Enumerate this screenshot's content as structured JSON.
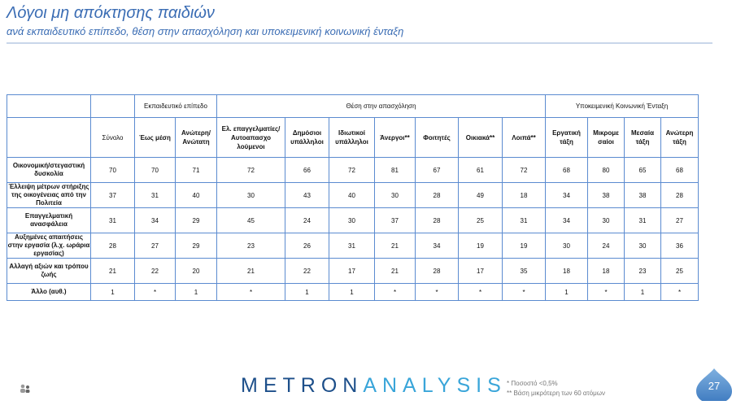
{
  "header": {
    "title": "Λόγοι μη απόκτησης παιδιών",
    "subtitle": "ανά εκπαιδευτικό επίπεδο, θέση στην απασχόληση και υποκειμενική κοινωνική ένταξη"
  },
  "table": {
    "groups": {
      "education": "Εκπαιδευτικό επίπεδο",
      "employment": "Θέση στην απασχόληση",
      "class": "Υποκειμενική Κοινωνική Ένταξη"
    },
    "columns": [
      "Σύνολο",
      "Έως μέση",
      "Ανώτερη/ Ανώτατη",
      "Ελ. επαγγελματίες/ Αυτοαπασχο λούμενοι",
      "Δημόσιοι υπάλληλοι",
      "Ιδιωτικοί υπάλληλοι",
      "Άνεργοι**",
      "Φοιτητές",
      "Οικιακά**",
      "Λοιπά**",
      "Εργατική τάξη",
      "Μικρομε σαίοι",
      "Μεσαία τάξη",
      "Ανώτερη τάξη"
    ],
    "rows": [
      {
        "label": "Οικονομική/στεγαστική δυσκολία",
        "values": [
          "70",
          "70",
          "71",
          "72",
          "66",
          "72",
          "81",
          "67",
          "61",
          "72",
          "68",
          "80",
          "65",
          "68"
        ]
      },
      {
        "label": "Έλλειψη μέτρων στήριξης της οικογένειας από την Πολιτεία",
        "values": [
          "37",
          "31",
          "40",
          "30",
          "43",
          "40",
          "30",
          "28",
          "49",
          "18",
          "34",
          "38",
          "38",
          "28"
        ]
      },
      {
        "label": "Επαγγελματική ανασφάλεια",
        "values": [
          "31",
          "34",
          "29",
          "45",
          "24",
          "30",
          "37",
          "28",
          "25",
          "31",
          "34",
          "30",
          "31",
          "27"
        ]
      },
      {
        "label": "Αυξημένες απαιτήσεις στην εργασία (λ.χ. ωράρια εργασίας)",
        "values": [
          "28",
          "27",
          "29",
          "23",
          "26",
          "31",
          "21",
          "34",
          "19",
          "19",
          "30",
          "24",
          "30",
          "36"
        ]
      },
      {
        "label": "Αλλαγή αξιών και τρόπου ζωής",
        "values": [
          "21",
          "22",
          "20",
          "21",
          "22",
          "17",
          "21",
          "28",
          "17",
          "35",
          "18",
          "18",
          "23",
          "25"
        ]
      },
      {
        "label": "Άλλο (αυθ.)",
        "values": [
          "1",
          "*",
          "1",
          "*",
          "1",
          "1",
          "*",
          "*",
          "*",
          "*",
          "1",
          "*",
          "1",
          "*"
        ]
      }
    ]
  },
  "footer": {
    "logo_part1": "METRON",
    "logo_part2": "ANALYSIS",
    "note1": "*   Ποσοστό <0,5%",
    "note2": "** Βάση μικρότερη των 60 ατόμων",
    "page_number": "27"
  },
  "colors": {
    "accent": "#3b6db4",
    "border": "#5b8bd0",
    "highlight": "#e0262b",
    "logo_dark": "#1d4f8a",
    "logo_light": "#39a5d9"
  }
}
